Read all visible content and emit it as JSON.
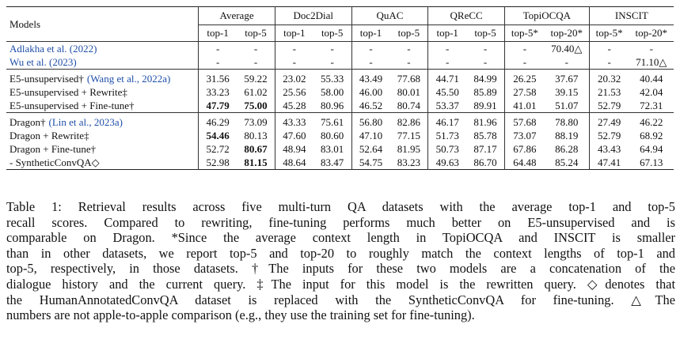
{
  "table": {
    "header_models": "Models",
    "groups": [
      "Average",
      "Doc2Dial",
      "QuAC",
      "QReCC",
      "TopiOCQA",
      "INSCIT"
    ],
    "subheaders": [
      "top-1",
      "top-5",
      "top-1",
      "top-5",
      "top-1",
      "top-5",
      "top-1",
      "top-5",
      "top-5*",
      "top-20*",
      "top-5*",
      "top-20*"
    ],
    "sections": [
      [
        {
          "model": "Adlakha et al. (2022)",
          "model_cite": true,
          "cells": [
            "-",
            "-",
            "-",
            "-",
            "-",
            "-",
            "-",
            "-",
            "-",
            "70.40△",
            "-",
            "-"
          ]
        },
        {
          "model": "Wu et al. (2023)",
          "model_cite": true,
          "cells": [
            "-",
            "-",
            "-",
            "-",
            "-",
            "-",
            "-",
            "-",
            "-",
            "-",
            "-",
            "71.10△"
          ]
        }
      ],
      [
        {
          "model": "E5-unsupervised†",
          "model_cite_text": "(Wang et al., 2022a)",
          "cells": [
            "31.56",
            "59.22",
            "23.02",
            "55.33",
            "43.49",
            "77.68",
            "44.71",
            "84.99",
            "26.25",
            "37.67",
            "20.32",
            "40.44"
          ]
        },
        {
          "model": "E5-unsupervised + Rewrite‡",
          "cells": [
            "33.23",
            "61.02",
            "25.56",
            "58.00",
            "46.00",
            "80.01",
            "45.50",
            "85.89",
            "27.58",
            "39.15",
            "21.53",
            "42.04"
          ]
        },
        {
          "model": "E5-unsupervised + Fine-tune†",
          "cells": [
            "47.79",
            "75.00",
            "45.28",
            "80.96",
            "46.52",
            "80.74",
            "53.37",
            "89.91",
            "41.01",
            "51.07",
            "52.79",
            "72.31"
          ],
          "bold": [
            0,
            1
          ]
        }
      ],
      [
        {
          "model": "Dragon†",
          "model_cite_text": "(Lin et al., 2023a)",
          "cells": [
            "46.29",
            "73.09",
            "43.33",
            "75.61",
            "56.80",
            "82.86",
            "46.17",
            "81.96",
            "57.68",
            "78.80",
            "27.49",
            "46.22"
          ]
        },
        {
          "model": "Dragon + Rewrite‡",
          "cells": [
            "54.46",
            "80.13",
            "47.60",
            "80.60",
            "47.10",
            "77.15",
            "51.73",
            "85.78",
            "73.07",
            "88.19",
            "52.79",
            "68.92"
          ],
          "bold": [
            0
          ]
        },
        {
          "model": "Dragon + Fine-tune†",
          "cells": [
            "52.72",
            "80.67",
            "48.94",
            "83.01",
            "52.64",
            "81.95",
            "50.73",
            "87.17",
            "67.86",
            "86.28",
            "43.43",
            "64.94"
          ],
          "bold": [
            1
          ]
        },
        {
          "model": "- SyntheticConvQA◇",
          "cells": [
            "52.98",
            "81.15",
            "48.64",
            "83.47",
            "54.75",
            "83.23",
            "49.63",
            "86.70",
            "64.48",
            "85.24",
            "47.41",
            "67.13"
          ],
          "bold": [
            1
          ]
        }
      ]
    ]
  },
  "caption": [
    "Table 1: Retrieval results across five multi-turn QA datasets with the average top-1 and top-5",
    "recall scores. Compared to rewriting, fine-tuning performs much better on E5-unsupervised and is",
    "comparable on Dragon. *Since the average context length in TopiOCQA and INSCIT is smaller",
    "than in other datasets, we report top-5 and top-20 to roughly match the context lengths of top-1 and",
    "top-5, respectively, in those datasets. †The inputs for these two models are a concatenation of the",
    "dialogue history and the current query. ‡The input for this model is the rewritten query. ◇denotes that",
    "the HumanAnnotatedConvQA dataset is replaced with the SyntheticConvQA for fine-tuning. △The",
    "numbers are not apple-to-apple comparison (e.g., they use the training set for fine-tuning)."
  ]
}
